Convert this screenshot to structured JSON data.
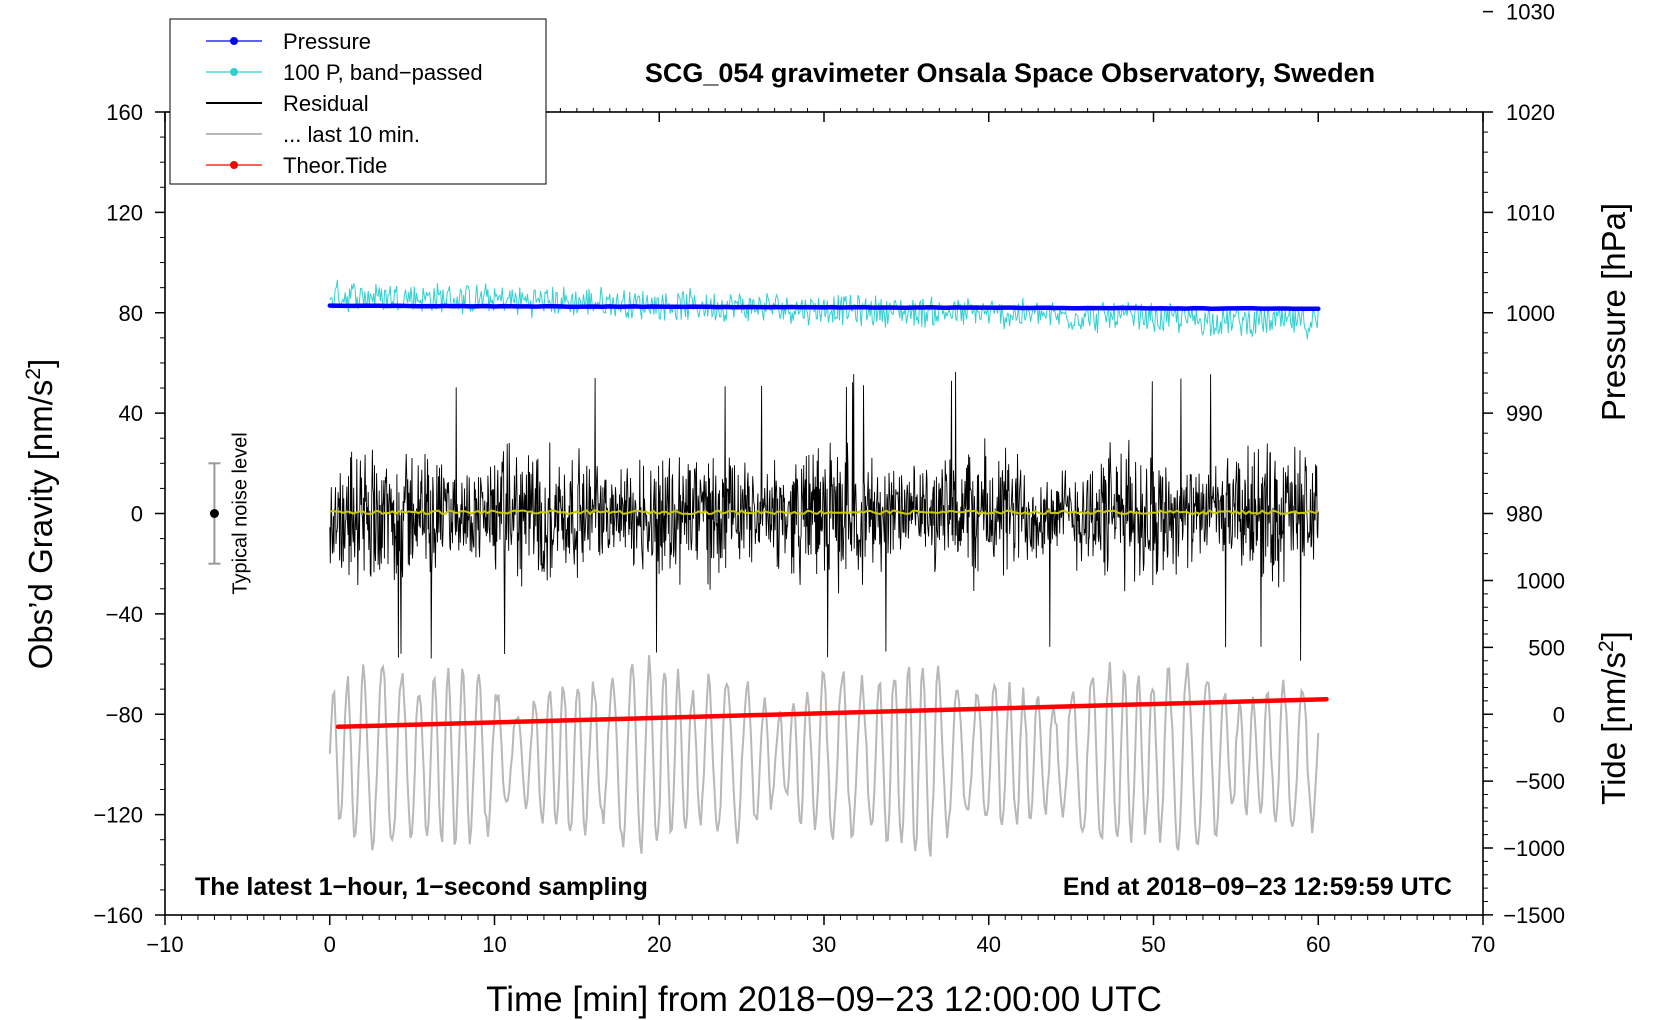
{
  "chart_data": {
    "type": "line",
    "title": "SCG_054 gravimeter Onsala Space Observatory, Sweden",
    "xlabel": "Time [min] from 2018−09−23 12:00:00 UTC",
    "ylabel_left_main": "Obs’d Gravity [nm/s",
    "ylabel_left_sup": "2",
    "ylabel_left_close": "]",
    "ylabel_right_top": "Pressure [hPa]",
    "ylabel_right_bottom_main": "Tide [nm/s",
    "ylabel_right_bottom_sup": "2",
    "ylabel_right_bottom_close": "]",
    "xlim": [
      -10,
      70
    ],
    "ylim": [
      -160,
      160
    ],
    "x_ticks": [
      -10,
      0,
      10,
      20,
      30,
      40,
      50,
      60,
      70
    ],
    "x_tick_labels": [
      "−10",
      "0",
      "10",
      "20",
      "30",
      "40",
      "50",
      "60",
      "70"
    ],
    "y_ticks": [
      160,
      120,
      80,
      40,
      0,
      -40,
      -80,
      -120,
      -160
    ],
    "y_tick_labels": [
      "160",
      "120",
      "80",
      "40",
      "0",
      "−40",
      "−80",
      "−120",
      "−160"
    ],
    "pressure_axis": {
      "ticks": [
        1030,
        1020,
        1010,
        1000,
        990,
        980
      ],
      "labels": [
        "1030",
        "1020",
        "1010",
        "1000",
        "990",
        "980"
      ],
      "ref_value": 1000,
      "ref_gravity": 80,
      "gravity_per_unit": 4.0
    },
    "tide_axis": {
      "ticks": [
        1000,
        500,
        0,
        -500,
        -1000,
        -1500
      ],
      "labels": [
        "1000",
        "500",
        "0",
        "−500",
        "−1000",
        "−1500"
      ],
      "ref_value": 0,
      "ref_gravity": -80,
      "gravity_per_unit": 0.0533
    },
    "legend": {
      "placement": "top-left",
      "items": [
        {
          "label": "Pressure",
          "color": "#0000ff",
          "style": "line-dot"
        },
        {
          "label": "100 P, band−passed",
          "color": "#30d0d0",
          "style": "line-dot"
        },
        {
          "label": "Residual",
          "color": "#000000",
          "style": "line"
        },
        {
          "label": "... last 10 min.",
          "color": "#b8b8b8",
          "style": "line"
        },
        {
          "label": "Theor.Tide",
          "color": "#ff0000",
          "style": "line-dot"
        }
      ]
    },
    "series": [
      {
        "name": "Pressure",
        "color": "#0000ff",
        "x_range": [
          0,
          60
        ],
        "y_start": 82.8,
        "y_end": 81.6
      },
      {
        "name": "100 P, band−passed",
        "color": "#30d0d0",
        "x_range": [
          0,
          60
        ],
        "y_start": 87,
        "y_end": 76,
        "amplitude": 7
      },
      {
        "name": "Residual",
        "color": "#000000",
        "x_range": [
          0,
          60
        ],
        "y_center": 0,
        "amplitude": 28,
        "y_max": 57,
        "y_min": -62
      },
      {
        "name": "Residual mean",
        "color": "#c8c800",
        "x_range": [
          0,
          60
        ],
        "y": 0.5
      },
      {
        "name": "... last 10 min.",
        "color": "#b8b8b8",
        "x_range": [
          0,
          60
        ],
        "y_center": -97,
        "amplitude": 28
      },
      {
        "name": "Theor.Tide",
        "color": "#ff0000",
        "x_range": [
          0.5,
          60.5
        ],
        "y_start": -85,
        "y_end": -74
      }
    ],
    "noise_bar": {
      "x": -7,
      "y": 0,
      "y_low": -20,
      "y_high": 20,
      "label": "Typical noise level"
    },
    "annotations": {
      "bottom_left": "The latest 1−hour, 1−second sampling",
      "bottom_right": "End at 2018−09−23 12:59:59 UTC"
    }
  }
}
